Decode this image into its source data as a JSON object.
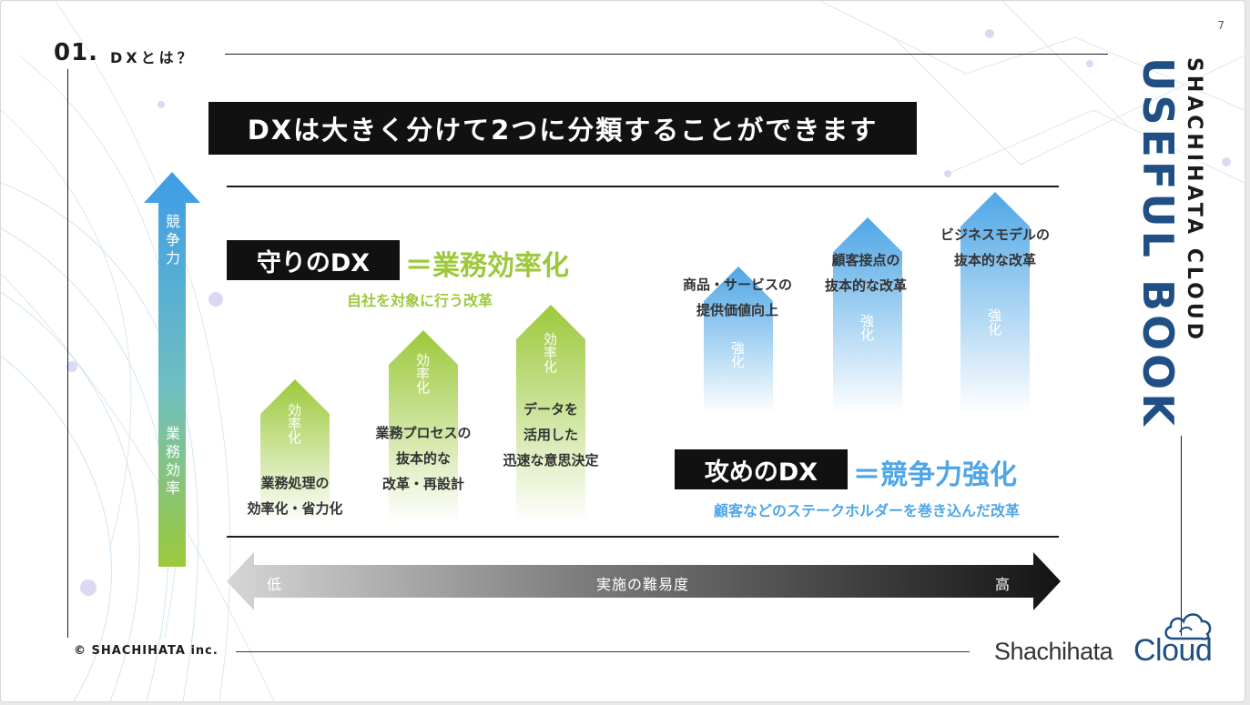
{
  "page": {
    "section_number": "01.",
    "section_title": "DXとは？",
    "page_number": "7",
    "headline": "DXは大きく分けて2つに分類することができます"
  },
  "axis": {
    "vertical_top": "競争力",
    "vertical_bottom": "業務効率",
    "horizontal_label": "実施の難易度",
    "horizontal_low": "低",
    "horizontal_high": "高"
  },
  "defensive": {
    "label": "守りのDX",
    "equals": "＝業務効率化",
    "subtitle": "自社を対象に行う改革",
    "color": "#9cc93b",
    "items": [
      {
        "arrow_text": "効率化",
        "caption": "業務処理の\n効率化・省力化"
      },
      {
        "arrow_text": "効率化",
        "caption": "業務プロセスの\n抜本的な\n改革・再設計"
      },
      {
        "arrow_text": "効率化",
        "caption": "データを\n活用した\n迅速な意思決定"
      }
    ]
  },
  "offensive": {
    "label": "攻めのDX",
    "equals": "＝競争力強化",
    "subtitle": "顧客などのステークホルダーを巻き込んだ改革",
    "color": "#4ea6e6",
    "items": [
      {
        "arrow_text": "強化",
        "caption": "商品・サービスの\n提供価値向上"
      },
      {
        "arrow_text": "強化",
        "caption": "顧客接点の\n抜本的な改革"
      },
      {
        "arrow_text": "強化",
        "caption": "ビジネスモデルの\n抜本的な改革"
      }
    ]
  },
  "brand": {
    "side_small": "SHACHIHATA CLOUD",
    "side_large": "USEFUL BOOK",
    "copyright": "© SHACHIHATA inc.",
    "logo_part1": "Shachihata",
    "logo_part2": "Cloud",
    "logo_color": "#1f4f84"
  }
}
